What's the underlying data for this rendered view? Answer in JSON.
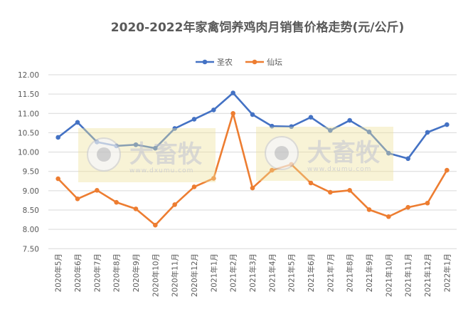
{
  "chart_data": {
    "type": "line",
    "title": "2020-2022年家禽饲养鸡肉月销售价格走势(元/公斤)",
    "xlabel": "",
    "ylabel": "",
    "ylim": [
      7.5,
      12.0
    ],
    "yticks": [
      "12.00",
      "11.50",
      "11.00",
      "10.50",
      "10.00",
      "9.50",
      "9.00",
      "8.50",
      "8.00",
      "7.50"
    ],
    "grid": true,
    "legend_position": "top",
    "categories": [
      "2020年5月",
      "2020年6月",
      "2020年7月",
      "2020年8月",
      "2020年9月",
      "2020年10月",
      "2020年11月",
      "2020年12月",
      "2021年1月",
      "2021年2月",
      "2021年3月",
      "2021年4月",
      "2021年5月",
      "2021年6月",
      "2021年7月",
      "2021年8月",
      "2021年9月",
      "2021年10月",
      "2021年11月",
      "2021年12月",
      "2022年1月"
    ],
    "series": [
      {
        "name": "圣农",
        "color": "#4472C4",
        "values": [
          10.38,
          10.77,
          10.26,
          10.16,
          10.19,
          10.1,
          10.61,
          10.85,
          11.09,
          11.53,
          10.97,
          10.67,
          10.66,
          10.9,
          10.56,
          10.82,
          10.52,
          9.97,
          9.83,
          10.51,
          10.71
        ]
      },
      {
        "name": "仙坛",
        "color": "#ED7D31",
        "values": [
          9.31,
          8.79,
          9.01,
          8.7,
          8.53,
          8.11,
          8.64,
          9.1,
          9.32,
          11.0,
          9.07,
          9.53,
          9.68,
          9.2,
          8.96,
          9.01,
          8.51,
          8.33,
          8.57,
          8.68,
          9.53
        ]
      }
    ]
  },
  "watermark": {
    "logo_text": "大畜牧",
    "url": "www.dxumu.com"
  }
}
